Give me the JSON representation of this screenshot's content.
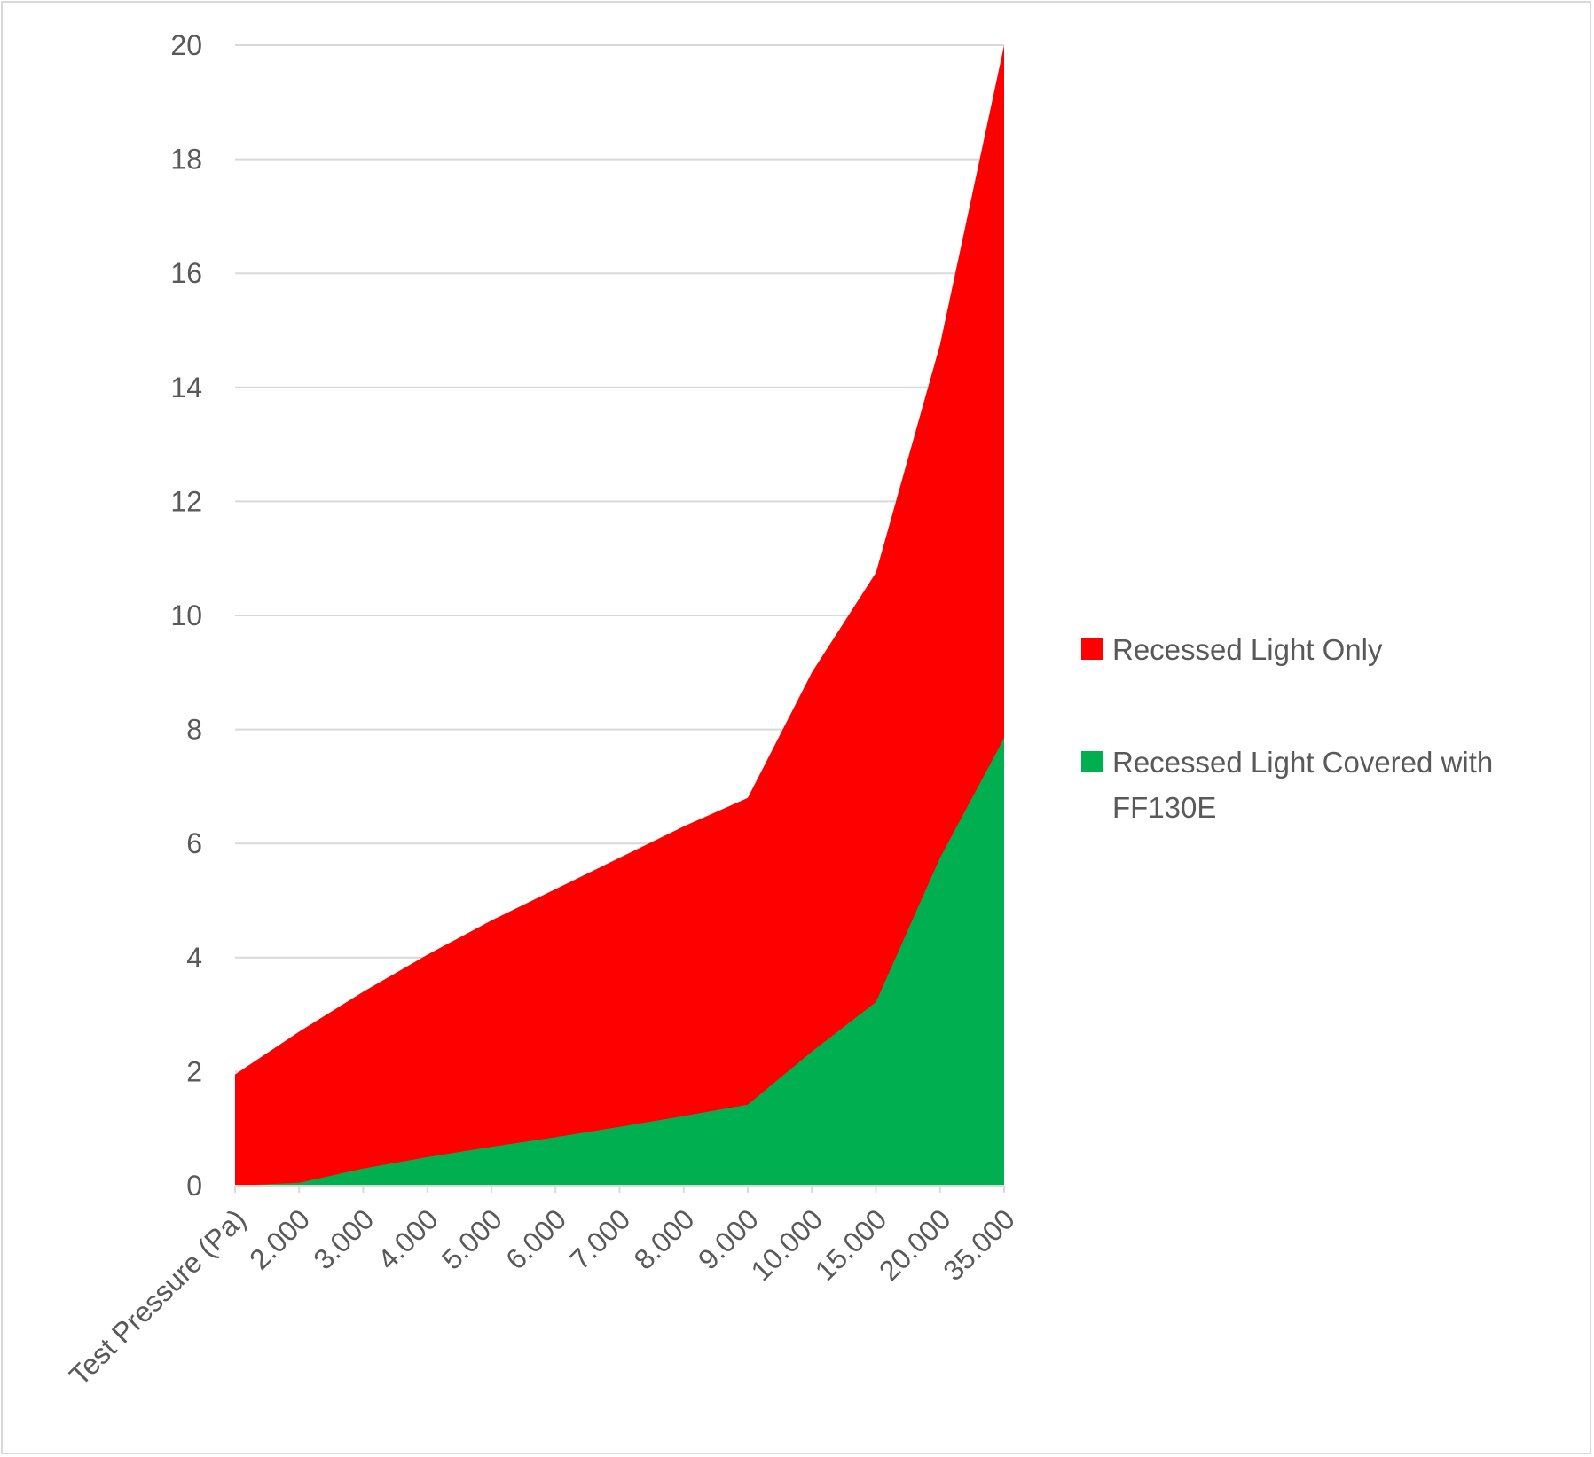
{
  "chart_data": {
    "type": "area",
    "title": "",
    "xlabel": "",
    "ylabel": "",
    "categories": [
      "Test Pressure (Pa)",
      "2.000",
      "3.000",
      "4.000",
      "5.000",
      "6.000",
      "7.000",
      "8.000",
      "9.000",
      "10.000",
      "15.000",
      "20.000",
      "35.000"
    ],
    "ylim": [
      0,
      20
    ],
    "yticks": [
      "0",
      "2",
      "4",
      "6",
      "8",
      "10",
      "12",
      "14",
      "16",
      "18",
      "20"
    ],
    "grid": true,
    "legend_position": "right",
    "stacked": false,
    "series": [
      {
        "name": "Recessed Light Only",
        "color": "#ff0000",
        "values": [
          1.95,
          2.7,
          3.4,
          4.05,
          4.65,
          5.2,
          5.75,
          6.3,
          6.8,
          9.0,
          10.75,
          14.75,
          20.0
        ]
      },
      {
        "name": "Recessed Light Covered with FF130E",
        "color": "#00b050",
        "values": [
          0.0,
          0.05,
          0.3,
          0.5,
          0.68,
          0.85,
          1.03,
          1.22,
          1.42,
          2.35,
          3.22,
          5.75,
          7.85
        ]
      }
    ]
  }
}
